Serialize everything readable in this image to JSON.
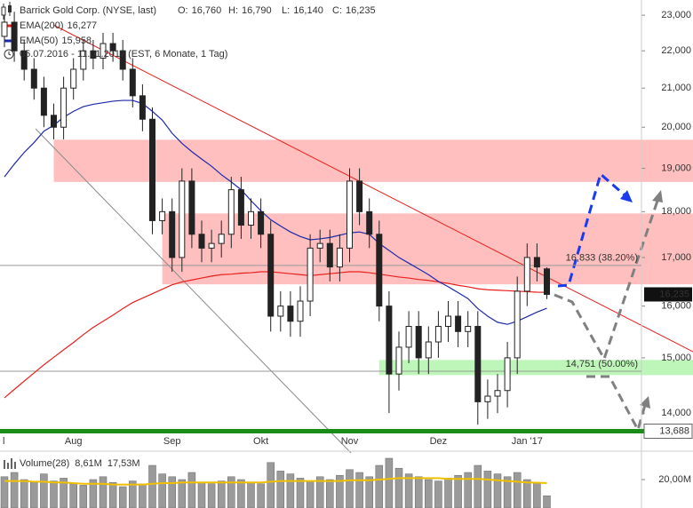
{
  "chart_data": {
    "type": "candlestick",
    "title": "Barrick Gold Corp. (NYSE, last)",
    "quote": {
      "labels": [
        "O:",
        "H:",
        "L:",
        "C:"
      ],
      "values": [
        16760,
        16790,
        16140,
        16235
      ],
      "value_labels": [
        "16,760",
        "16,790",
        "16,140",
        "16,235"
      ]
    },
    "period": "05.07.2016 - 11.01.2017 (EST, 6 Monate, 1 Tag)",
    "categories": [
      "l",
      null,
      null,
      null,
      null,
      null,
      null,
      "Aug",
      null,
      null,
      null,
      null,
      null,
      null,
      null,
      null,
      null,
      "Sep",
      null,
      null,
      null,
      null,
      null,
      null,
      null,
      null,
      "Okt",
      null,
      null,
      null,
      null,
      null,
      null,
      null,
      null,
      "Nov",
      null,
      null,
      null,
      null,
      null,
      null,
      null,
      null,
      "Dez",
      null,
      null,
      null,
      null,
      null,
      null,
      null,
      null,
      "Jan '17",
      null,
      null
    ],
    "open": [
      22400,
      22800,
      22000,
      21500,
      21000,
      20300,
      20000,
      21000,
      21500,
      22000,
      21800,
      22200,
      22000,
      21500,
      20800,
      20200,
      17800,
      18000,
      17000,
      18700,
      17500,
      17200,
      17300,
      17500,
      18500,
      17700,
      18000,
      17500,
      15800,
      16000,
      15700,
      16100,
      17200,
      17300,
      16800,
      17200,
      18700,
      18000,
      17500,
      16000,
      14700,
      15200,
      15600,
      15000,
      15300,
      15600,
      15800,
      15500,
      15600,
      14200,
      14300,
      14400,
      15000,
      16300,
      17000,
      16760
    ],
    "high": [
      23100,
      23100,
      22300,
      21800,
      21300,
      20600,
      21300,
      21800,
      22300,
      22300,
      22500,
      22500,
      22300,
      21800,
      21100,
      20500,
      18300,
      18300,
      19000,
      19000,
      17800,
      17600,
      17800,
      18800,
      18800,
      18300,
      18300,
      17800,
      16300,
      16300,
      16400,
      17500,
      17600,
      17600,
      17500,
      19000,
      19000,
      18300,
      17800,
      16300,
      15500,
      15900,
      15900,
      15600,
      15900,
      16100,
      16100,
      15900,
      15900,
      14600,
      14700,
      15300,
      16600,
      17300,
      17300,
      16790
    ],
    "low": [
      22100,
      21700,
      21200,
      20700,
      20000,
      19700,
      19700,
      20700,
      21200,
      21500,
      21500,
      21700,
      21200,
      20500,
      19900,
      17500,
      17500,
      16700,
      16700,
      17200,
      16900,
      16900,
      17000,
      17200,
      17400,
      17400,
      17200,
      15500,
      15500,
      15400,
      15400,
      15800,
      16900,
      16500,
      16500,
      16900,
      17700,
      17200,
      15700,
      14000,
      14400,
      14900,
      14700,
      14700,
      15000,
      15300,
      15200,
      15200,
      13800,
      13900,
      14000,
      14100,
      14700,
      16000,
      16500,
      16140
    ],
    "close": [
      22800,
      22000,
      21500,
      21000,
      20300,
      20000,
      21000,
      21500,
      22000,
      21800,
      22200,
      22000,
      21500,
      20800,
      20200,
      17800,
      18000,
      17000,
      18700,
      17500,
      17200,
      17300,
      17500,
      18500,
      17700,
      18000,
      17500,
      15800,
      16000,
      15700,
      16100,
      17200,
      17300,
      16800,
      17200,
      18700,
      18000,
      17500,
      16000,
      14700,
      15200,
      15600,
      15000,
      15300,
      15600,
      15800,
      15500,
      15600,
      14200,
      14300,
      14400,
      15000,
      16300,
      17000,
      16800,
      16235
    ],
    "ylim": [
      13620,
      23440
    ],
    "log": true,
    "yticks": [
      {
        "value": 14000,
        "label": "14,000"
      },
      {
        "value": 15000,
        "label": "15,000"
      },
      {
        "value": 16000,
        "label": "16,000"
      },
      {
        "value": 17000,
        "label": "17,000"
      },
      {
        "value": 18000,
        "label": "18,000"
      },
      {
        "value": 19000,
        "label": "19,000"
      },
      {
        "value": 20000,
        "label": "20,000"
      },
      {
        "value": 21000,
        "label": "21,000"
      },
      {
        "value": 22000,
        "label": "22,000"
      },
      {
        "value": 23000,
        "label": "23,000"
      }
    ],
    "series": [
      {
        "name": "EMA(200)",
        "color": "#e8201c",
        "legend": {
          "value": 16277,
          "label": "16,277"
        },
        "values": [
          14270,
          14420,
          14570,
          14720,
          14870,
          15010,
          15150,
          15290,
          15440,
          15580,
          15700,
          15820,
          15950,
          16070,
          16160,
          16250,
          16340,
          16430,
          16490,
          16530,
          16570,
          16610,
          16640,
          16650,
          16670,
          16680,
          16700,
          16700,
          16680,
          16660,
          16640,
          16620,
          16640,
          16660,
          16680,
          16700,
          16700,
          16680,
          16650,
          16620,
          16590,
          16570,
          16540,
          16520,
          16490,
          16460,
          16420,
          16390,
          16350,
          16330,
          16320,
          16310,
          16300,
          16290,
          16280,
          16277
        ]
      },
      {
        "name": "EMA(50)",
        "color": "#1c2aa8",
        "legend": {
          "value": 15958,
          "label": "15,958"
        },
        "values": [
          18800,
          19100,
          19380,
          19620,
          19900,
          20050,
          20250,
          20400,
          20520,
          20580,
          20620,
          20660,
          20680,
          20680,
          20600,
          20400,
          20180,
          19850,
          19600,
          19400,
          19220,
          19050,
          18850,
          18680,
          18500,
          18250,
          18020,
          17820,
          17680,
          17550,
          17450,
          17380,
          17400,
          17430,
          17480,
          17530,
          17550,
          17500,
          17300,
          17150,
          17000,
          16880,
          16760,
          16640,
          16500,
          16390,
          16270,
          16150,
          15950,
          15800,
          15680,
          15640,
          15700,
          15790,
          15880,
          15958
        ]
      }
    ],
    "zones": [
      {
        "from": 18680,
        "to": 19690,
        "start": 5,
        "color": "#ffb8b8"
      },
      {
        "from": 16440,
        "to": 17960,
        "start": 16,
        "color": "#ffb8b8"
      },
      {
        "from": 14680,
        "to": 14960,
        "start": 38,
        "color": "#b6f5b0"
      }
    ],
    "levels": [
      {
        "value": 16833,
        "label": "16,833 (38.20%)",
        "color": "#999999"
      },
      {
        "value": 14751,
        "label": "14,751 (50.00%)",
        "color": "#999999"
      },
      {
        "value": 13688,
        "label": "13,688",
        "color": "#1a8c1a"
      }
    ],
    "last": {
      "value": 16235,
      "label": "16,235"
    },
    "volume": {
      "title": "Volume(28)",
      "last": {
        "value": 8.61,
        "label": "8,61M"
      },
      "values": [
        22,
        25,
        20,
        18,
        24,
        19,
        21,
        17,
        16,
        20,
        22,
        18,
        15,
        19,
        17,
        30,
        24,
        22,
        20,
        25,
        18,
        17,
        19,
        22,
        20,
        18,
        17,
        32,
        26,
        24,
        21,
        19,
        22,
        20,
        23,
        27,
        25,
        22,
        30,
        35,
        28,
        24,
        22,
        20,
        19,
        21,
        23,
        25,
        30,
        26,
        24,
        22,
        25,
        20,
        18,
        8.61
      ],
      "average": {
        "color": "#f0c000",
        "last": {
          "value": 17.53,
          "label": "17,53M"
        },
        "values": [
          19,
          19,
          19,
          18.5,
          18.5,
          18,
          18,
          17.5,
          17,
          17,
          17,
          16.5,
          16.5,
          16.5,
          16.5,
          17,
          17.5,
          17.5,
          18,
          18,
          18,
          18,
          18,
          18,
          18,
          18,
          18,
          18.5,
          19,
          19,
          19,
          19,
          19,
          19,
          19,
          19.5,
          19.5,
          19.5,
          20,
          20.5,
          21,
          21,
          21,
          21,
          21,
          20.5,
          20.5,
          20.5,
          20.5,
          20,
          19.5,
          19,
          18.5,
          18,
          17.8,
          17.53
        ]
      },
      "color": "#9a9a9a",
      "ylim": [
        0,
        38.75
      ],
      "yticks": [
        {
          "value": 20,
          "label": "20,00M"
        }
      ]
    }
  }
}
